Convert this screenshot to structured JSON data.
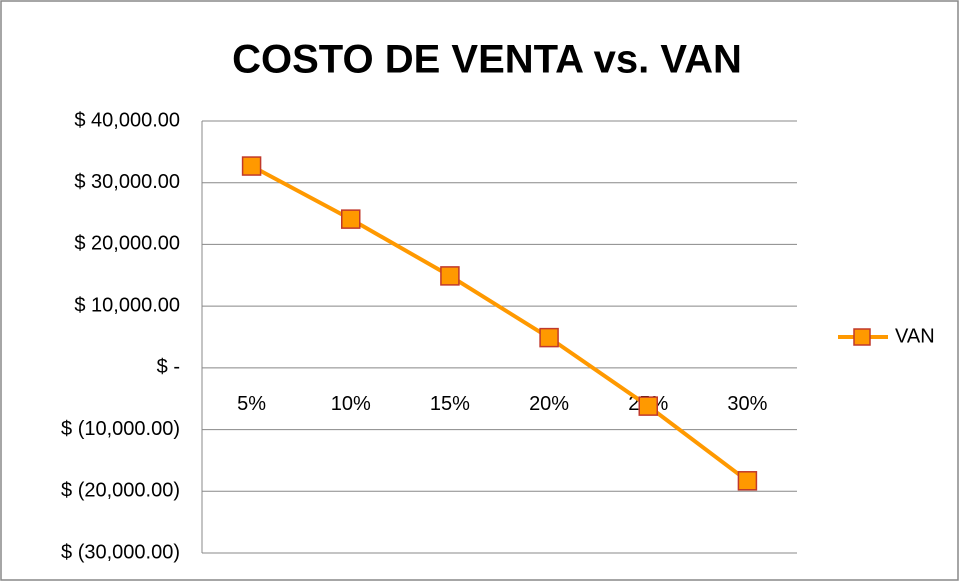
{
  "chart_data": {
    "type": "line",
    "title": "COSTO DE VENTA vs. VAN",
    "categories": [
      "5%",
      "10%",
      "15%",
      "20%",
      "25%",
      "30%"
    ],
    "series": [
      {
        "name": "VAN",
        "color": "#ff9900",
        "marker_edge": "#c0392b",
        "values": [
          32700,
          24100,
          14900,
          4900,
          -6200,
          -18300
        ]
      }
    ],
    "ylim": [
      -30000,
      40000
    ],
    "yticks": [
      {
        "value": -30000,
        "label": "$ (30,000.00)"
      },
      {
        "value": -20000,
        "label": "$ (20,000.00)"
      },
      {
        "value": -10000,
        "label": "$ (10,000.00)"
      },
      {
        "value": 0,
        "label": "$ -"
      },
      {
        "value": 10000,
        "label": "$ 10,000.00"
      },
      {
        "value": 20000,
        "label": "$ 20,000.00"
      },
      {
        "value": 30000,
        "label": "$ 30,000.00"
      },
      {
        "value": 40000,
        "label": "$ 40,000.00"
      }
    ],
    "grid": true,
    "legend": "right"
  }
}
